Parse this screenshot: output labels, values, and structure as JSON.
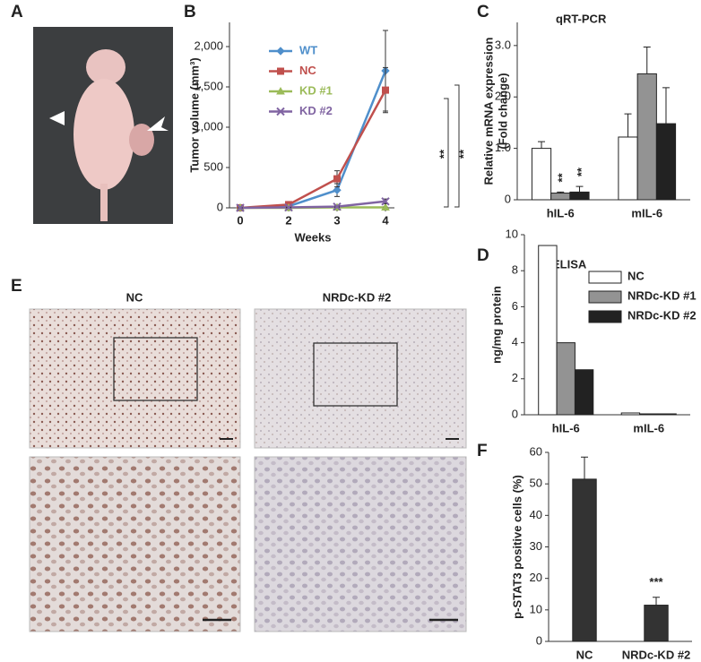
{
  "panel_labels": [
    "A",
    "B",
    "C",
    "D",
    "E",
    "F"
  ],
  "image_captions": [
    "NC",
    "NRDc-KD #2"
  ],
  "chart_data": [
    {
      "type": "line",
      "x_label": "Weeks",
      "y_label": "Tumor volume (mm³)",
      "categories": [
        "0",
        "2",
        "3",
        "4"
      ],
      "ylim": [
        0,
        2300
      ],
      "yticks": [
        0,
        500,
        {
          "value": 1000,
          "label": "1,000"
        },
        {
          "value": 1500,
          "label": "1,500"
        },
        {
          "value": 2000,
          "label": "2,000"
        }
      ],
      "series": [
        {
          "name": "WT",
          "color": "#4f8fcb",
          "marker": "diamond",
          "values": [
            0,
            20,
            220,
            1700
          ],
          "errors": [
            0,
            10,
            80,
            500
          ]
        },
        {
          "name": "NC",
          "color": "#c0504d",
          "marker": "square",
          "values": [
            0,
            40,
            360,
            1460
          ],
          "errors": [
            0,
            10,
            100,
            280
          ]
        },
        {
          "name": "KD #1",
          "color": "#9bbb59",
          "marker": "triangle",
          "values": [
            0,
            0,
            5,
            5
          ],
          "errors": [
            0,
            0,
            3,
            3
          ]
        },
        {
          "name": "KD #2",
          "color": "#8064a2",
          "marker": "cross",
          "values": [
            0,
            5,
            15,
            80
          ],
          "errors": [
            0,
            3,
            8,
            30
          ]
        }
      ],
      "annotations": [
        "**",
        "**"
      ]
    },
    {
      "type": "bar",
      "title": "qRT-PCR",
      "y_label": [
        "Relative mRNA expression",
        "(Fold change)"
      ],
      "categories": [
        "hIL-6",
        "mIL-6"
      ],
      "ylim": [
        0,
        3.45
      ],
      "yticks": [
        0,
        {
          "value": 1,
          "label": "1.0"
        },
        {
          "value": 2,
          "label": "2.0"
        },
        {
          "value": 3,
          "label": "3.0"
        }
      ],
      "series": [
        {
          "color": "#ffffff",
          "values": [
            1.0,
            1.22
          ],
          "errors": [
            0.13,
            0.45
          ]
        },
        {
          "color": "#939393",
          "values": [
            0.13,
            2.45
          ],
          "errors": [
            0.02,
            0.52
          ]
        },
        {
          "color": "#222222",
          "values": [
            0.15,
            1.48
          ],
          "errors": [
            0.11,
            0.7
          ]
        }
      ],
      "annotations": [
        "**",
        "**"
      ]
    },
    {
      "type": "bar",
      "title": "ELISA",
      "y_label": [
        "ng/mg protein"
      ],
      "categories": [
        "hIL-6",
        "mIL-6"
      ],
      "ylim": [
        0,
        10
      ],
      "yticks": [
        0,
        2,
        4,
        6,
        8,
        10
      ],
      "series": [
        {
          "name": "NC",
          "color": "#ffffff",
          "values": [
            9.4,
            0.1
          ]
        },
        {
          "name": "NRDc-KD #1",
          "color": "#939393",
          "values": [
            4.0,
            0.05
          ]
        },
        {
          "name": "NRDc-KD #2",
          "color": "#222222",
          "values": [
            2.5,
            0.05
          ]
        }
      ]
    },
    {
      "type": "bar",
      "y_label": [
        "p-STAT3 positive cells (%)"
      ],
      "categories": [
        "NC",
        "NRDc-KD #2"
      ],
      "ylim": [
        0,
        60
      ],
      "yticks": [
        0,
        10,
        20,
        30,
        40,
        50,
        60
      ],
      "series": [
        {
          "color": "#333333",
          "values": [
            51.5,
            11.5
          ],
          "errors": [
            7,
            2.5
          ]
        }
      ],
      "annotations": [
        "***"
      ]
    }
  ]
}
